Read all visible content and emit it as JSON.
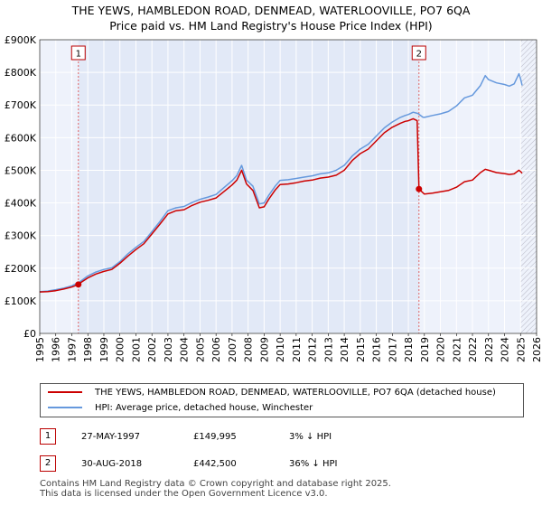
{
  "title_line1": "THE YEWS, HAMBLEDON ROAD, DENMEAD, WATERLOOVILLE, PO7 6QA",
  "title_line2": "Price paid vs. HM Land Registry's House Price Index (HPI)",
  "chart_data": {
    "type": "line",
    "title": "THE YEWS, HAMBLEDON ROAD, DENMEAD, WATERLOOVILLE, PO7 6QA — Price paid vs. HM Land Registry's House Price Index (HPI)",
    "xlabel": "",
    "ylabel": "",
    "xlim": [
      1995,
      2026
    ],
    "ylim": [
      0,
      900000
    ],
    "y_ticks": [
      0,
      100000,
      200000,
      300000,
      400000,
      500000,
      600000,
      700000,
      800000,
      900000
    ],
    "y_tick_labels": [
      "£0",
      "£100K",
      "£200K",
      "£300K",
      "£400K",
      "£500K",
      "£600K",
      "£700K",
      "£800K",
      "£900K"
    ],
    "x_ticks": [
      1995,
      1996,
      1997,
      1998,
      1999,
      2000,
      2001,
      2002,
      2003,
      2004,
      2005,
      2006,
      2007,
      2008,
      2009,
      2010,
      2011,
      2012,
      2013,
      2014,
      2015,
      2016,
      2017,
      2018,
      2019,
      2020,
      2021,
      2022,
      2023,
      2024,
      2025,
      2026
    ],
    "x_tick_labels": [
      "1995",
      "1996",
      "1997",
      "1998",
      "1999",
      "2000",
      "2001",
      "2002",
      "2003",
      "2004",
      "2005",
      "2006",
      "2007",
      "2008",
      "2009",
      "2010",
      "2011",
      "2012",
      "2013",
      "2014",
      "2015",
      "2016",
      "2017",
      "2018",
      "2019",
      "2020",
      "2021",
      "2022",
      "2023",
      "2024",
      "2025",
      "2026"
    ],
    "grid": true,
    "forecast_from": 2025.0,
    "series": [
      {
        "name": "THE YEWS, HAMBLEDON ROAD, DENMEAD, WATERLOOVILLE, PO7 6QA (detached house)",
        "color": "#cc0000",
        "x": [
          1995.0,
          1995.5,
          1996.0,
          1996.5,
          1997.0,
          1997.41,
          1997.6,
          1998.0,
          1998.5,
          1999.0,
          1999.5,
          2000.0,
          2000.5,
          2001.0,
          2001.5,
          2002.0,
          2002.5,
          2003.0,
          2003.5,
          2004.0,
          2004.5,
          2005.0,
          2005.5,
          2006.0,
          2006.5,
          2007.0,
          2007.3,
          2007.6,
          2007.9,
          2008.3,
          2008.7,
          2009.0,
          2009.3,
          2009.7,
          2010.0,
          2010.5,
          2011.0,
          2011.5,
          2012.0,
          2012.5,
          2013.0,
          2013.5,
          2014.0,
          2014.5,
          2015.0,
          2015.5,
          2016.0,
          2016.5,
          2017.0,
          2017.5,
          2017.8,
          2018.0,
          2018.3,
          2018.55,
          2018.66,
          2019.0,
          2019.5,
          2020.0,
          2020.5,
          2021.0,
          2021.5,
          2022.0,
          2022.5,
          2022.8,
          2023.0,
          2023.5,
          2024.0,
          2024.3,
          2024.6,
          2024.9,
          2025.0,
          2025.1
        ],
        "values": [
          127000,
          128000,
          131000,
          136000,
          142000,
          149995,
          157000,
          170000,
          182000,
          190000,
          196000,
          215000,
          237000,
          257000,
          275000,
          305000,
          335000,
          366000,
          376000,
          379000,
          392000,
          402000,
          408000,
          415000,
          435000,
          455000,
          470000,
          500000,
          458000,
          438000,
          385000,
          388000,
          412000,
          440000,
          456000,
          458000,
          462000,
          467000,
          470000,
          476000,
          479000,
          485000,
          500000,
          530000,
          551000,
          565000,
          590000,
          615000,
          632000,
          644000,
          650000,
          652000,
          658000,
          652000,
          442500,
          427000,
          430000,
          434000,
          438000,
          448000,
          465000,
          470000,
          493000,
          503000,
          500000,
          493000,
          490000,
          487000,
          489000,
          500000,
          496000,
          491000
        ]
      },
      {
        "name": "HPI: Average price, detached house, Winchester",
        "color": "#6699dd",
        "x": [
          1995.0,
          1995.5,
          1996.0,
          1996.5,
          1997.0,
          1997.5,
          1998.0,
          1998.5,
          1999.0,
          1999.5,
          2000.0,
          2000.5,
          2001.0,
          2001.5,
          2002.0,
          2002.5,
          2003.0,
          2003.5,
          2004.0,
          2004.5,
          2005.0,
          2005.5,
          2006.0,
          2006.5,
          2007.0,
          2007.3,
          2007.6,
          2007.9,
          2008.3,
          2008.7,
          2009.0,
          2009.3,
          2009.7,
          2010.0,
          2010.5,
          2011.0,
          2011.5,
          2012.0,
          2012.5,
          2013.0,
          2013.5,
          2014.0,
          2014.5,
          2015.0,
          2015.5,
          2016.0,
          2016.5,
          2017.0,
          2017.5,
          2017.8,
          2018.0,
          2018.3,
          2018.6,
          2018.9,
          2019.0,
          2019.5,
          2020.0,
          2020.5,
          2021.0,
          2021.5,
          2022.0,
          2022.5,
          2022.8,
          2023.0,
          2023.5,
          2024.0,
          2024.3,
          2024.6,
          2024.9,
          2025.0,
          2025.1
        ],
        "values": [
          128000,
          130000,
          134000,
          139000,
          146000,
          158000,
          176000,
          188000,
          196000,
          201000,
          220000,
          244000,
          264000,
          282000,
          312000,
          343000,
          376000,
          385000,
          389000,
          401000,
          411000,
          418000,
          426000,
          447000,
          468000,
          484000,
          515000,
          470000,
          451000,
          397000,
          400000,
          424000,
          452000,
          469000,
          471000,
          475000,
          479000,
          483000,
          489000,
          492000,
          500000,
          515000,
          544000,
          565000,
          580000,
          605000,
          630000,
          648000,
          662000,
          668000,
          671000,
          678000,
          674000,
          663000,
          662000,
          668000,
          673000,
          680000,
          697000,
          722000,
          730000,
          760000,
          790000,
          778000,
          768000,
          763000,
          758000,
          765000,
          796000,
          780000,
          760000
        ]
      }
    ],
    "markers": [
      {
        "label": "1",
        "x": 1997.41,
        "value": 149995
      },
      {
        "label": "2",
        "x": 2018.66,
        "value": 442500
      }
    ]
  },
  "legend": {
    "items": [
      {
        "label": "THE YEWS, HAMBLEDON ROAD, DENMEAD, WATERLOOVILLE, PO7 6QA (detached house)",
        "color": "#cc0000"
      },
      {
        "label": "HPI: Average price, detached house, Winchester",
        "color": "#6699dd"
      }
    ]
  },
  "sales": [
    {
      "num": "1",
      "date": "27-MAY-1997",
      "price": "£149,995",
      "hpi": "3% ↓ HPI"
    },
    {
      "num": "2",
      "date": "30-AUG-2018",
      "price": "£442,500",
      "hpi": "36% ↓ HPI"
    }
  ],
  "footer": {
    "line1": "Contains HM Land Registry data © Crown copyright and database right 2025.",
    "line2": "This data is licensed under the Open Government Licence v3.0."
  }
}
